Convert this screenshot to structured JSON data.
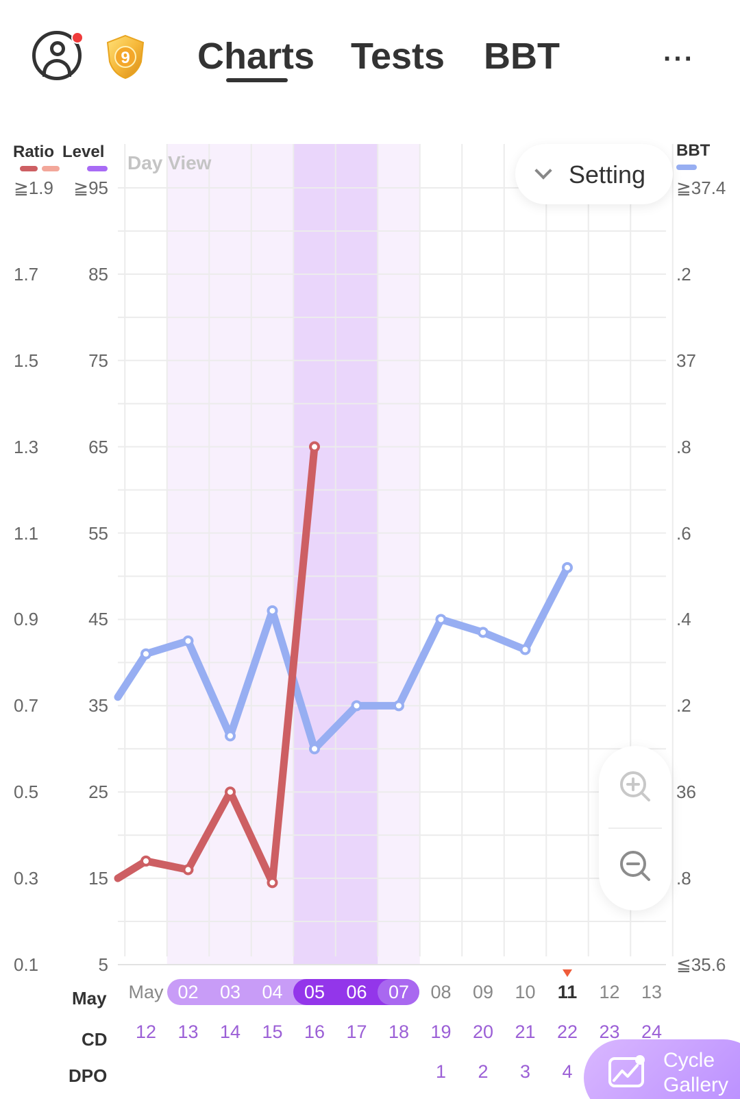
{
  "header": {
    "badge_level": "9",
    "tabs": [
      {
        "label": "Charts",
        "active": true
      },
      {
        "label": "Tests",
        "active": false
      },
      {
        "label": "BBT",
        "active": false
      }
    ],
    "more_label": "···"
  },
  "axes": {
    "ratio_title": "Ratio",
    "level_title": "Level",
    "bbt_title": "BBT",
    "ratio_ticks": [
      "≧1.9",
      "1.7",
      "1.5",
      "1.3",
      "1.1",
      "0.9",
      "0.7",
      "0.5",
      "0.3",
      "0.1"
    ],
    "level_ticks": [
      "≧95",
      "85",
      "75",
      "65",
      "55",
      "45",
      "35",
      "25",
      "15",
      "5"
    ],
    "bbt_ticks": [
      "≧37.4",
      ".2",
      "37",
      ".8",
      ".6",
      ".4",
      ".2",
      "36",
      ".8",
      "≦35.6"
    ]
  },
  "chart_overlay": {
    "view_label": "Day View",
    "setting_label": "Setting"
  },
  "rows": {
    "month_label": "May",
    "cd_label": "CD",
    "dpo_label": "DPO",
    "dates": [
      "May",
      "02",
      "03",
      "04",
      "05",
      "06",
      "07",
      "08",
      "09",
      "10",
      "11",
      "12",
      "13"
    ],
    "cycle_days": [
      "12",
      "13",
      "14",
      "15",
      "16",
      "17",
      "18",
      "19",
      "20",
      "21",
      "22",
      "23",
      "24"
    ],
    "dpo": [
      "",
      "",
      "",
      "",
      "",
      "",
      "",
      "1",
      "2",
      "3",
      "4",
      "",
      ""
    ]
  },
  "cycle_gallery": {
    "line1": "Cycle",
    "line2": "Gallery"
  },
  "colors": {
    "ratio_line": "#cd5f63",
    "ratio_legend_light": "#f3a79a",
    "level_legend": "#a86bf5",
    "bbt_line": "#97aef2",
    "fertile_light": "#f8f0fd",
    "fertile_dark": "#ead6fb",
    "today_marker": "#ef5c3a"
  },
  "chart_data": {
    "type": "line",
    "x": [
      "May",
      "02",
      "03",
      "04",
      "05",
      "06",
      "07",
      "08",
      "09",
      "10",
      "11",
      "12",
      "13"
    ],
    "cycle_day": [
      12,
      13,
      14,
      15,
      16,
      17,
      18,
      19,
      20,
      21,
      22,
      23,
      24
    ],
    "series": [
      {
        "name": "Ratio",
        "axis": "left",
        "values": [
          0.34,
          0.32,
          0.5,
          0.29,
          1.3,
          null,
          null,
          null,
          null,
          null,
          null,
          null,
          null
        ]
      },
      {
        "name": "BBT",
        "axis": "right",
        "values": [
          36.32,
          36.35,
          36.13,
          36.42,
          36.1,
          36.2,
          36.2,
          36.4,
          36.37,
          36.33,
          36.52,
          null,
          null
        ]
      }
    ],
    "ratio_ylim": [
      0.1,
      1.9
    ],
    "level_ylim": [
      5,
      95
    ],
    "bbt_ylim": [
      35.6,
      37.4
    ],
    "fertile_window": [
      "02",
      "07"
    ],
    "peak_days": [
      "05",
      "06"
    ],
    "today": "11",
    "grid": true
  }
}
